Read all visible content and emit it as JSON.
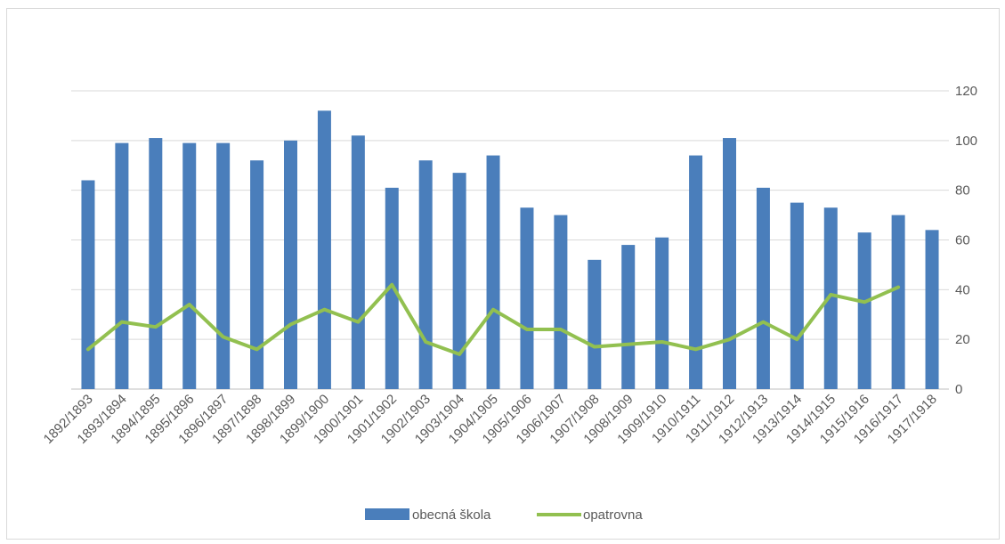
{
  "chart_data": {
    "type": "bar",
    "categories": [
      "1892/1893",
      "1893/1894",
      "1894/1895",
      "1895/1896",
      "1896/1897",
      "1897/1898",
      "1898/1899",
      "1899/1900",
      "1900/1901",
      "1901/1902",
      "1902/1903",
      "1903/1904",
      "1904/1905",
      "1905/1906",
      "1906/1907",
      "1907/1908",
      "1908/1909",
      "1909/1910",
      "1910/1911",
      "1911/1912",
      "1912/1913",
      "1913/1914",
      "1914/1915",
      "1915/1916",
      "1916/1917",
      "1917/1918"
    ],
    "series": [
      {
        "name": "obecná škola",
        "type": "bar",
        "color": "#4a7ebb",
        "values": [
          84,
          99,
          101,
          99,
          99,
          92,
          100,
          112,
          102,
          81,
          92,
          87,
          94,
          73,
          70,
          52,
          58,
          61,
          94,
          101,
          81,
          75,
          73,
          63,
          70,
          64
        ]
      },
      {
        "name": "opatrovna",
        "type": "line",
        "color": "#92c050",
        "values": [
          16,
          27,
          25,
          34,
          21,
          16,
          26,
          32,
          27,
          42,
          19,
          14,
          32,
          24,
          24,
          17,
          18,
          19,
          16,
          20,
          27,
          20,
          38,
          35,
          41,
          null
        ]
      }
    ],
    "ylim": [
      0,
      120
    ],
    "yticks": [
      0,
      20,
      40,
      60,
      80,
      100,
      120
    ],
    "y_axis_side": "right",
    "grid": true,
    "legend_position": "bottom"
  }
}
